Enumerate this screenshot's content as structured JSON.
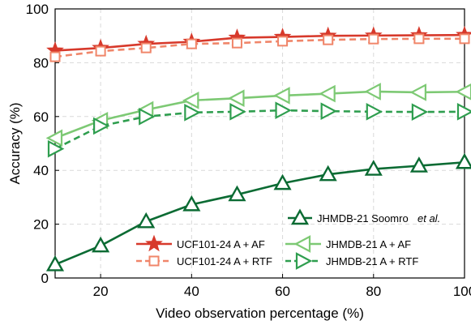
{
  "chart_data": {
    "type": "line",
    "xlabel": "Video observation percentage (%)",
    "ylabel": "Accuracy (%)",
    "xlim": [
      10,
      100
    ],
    "ylim": [
      0,
      100
    ],
    "xticks": [
      20,
      40,
      60,
      80,
      100
    ],
    "yticks": [
      0,
      20,
      40,
      60,
      80,
      100
    ],
    "grid": true,
    "legend_placement": "bottom-right",
    "x": [
      10,
      20,
      30,
      40,
      50,
      60,
      70,
      80,
      90,
      100
    ],
    "series": [
      {
        "name": "UCF101-24 A + AF",
        "values": [
          84.5,
          85.5,
          87.0,
          87.8,
          89.3,
          89.6,
          90.0,
          90.1,
          90.2,
          90.3
        ],
        "color": "#d7392b",
        "marker": "star",
        "dash": "solid"
      },
      {
        "name": "UCF101-24 A + RTF",
        "values": [
          82.2,
          84.3,
          85.5,
          87.0,
          87.3,
          88.0,
          88.5,
          88.8,
          88.9,
          88.9
        ],
        "color": "#f0866a",
        "marker": "square",
        "dash": "dashed"
      },
      {
        "name": "JHMDB-21 A + AF",
        "values": [
          52.0,
          58.5,
          62.5,
          66.0,
          66.8,
          67.8,
          68.5,
          69.3,
          69.0,
          69.2
        ],
        "color": "#7dc974",
        "marker": "triangle-left",
        "dash": "solid"
      },
      {
        "name": "JHMDB-21 A + RTF",
        "values": [
          48.0,
          56.5,
          60.0,
          61.5,
          61.8,
          62.3,
          62.0,
          61.8,
          61.7,
          61.8
        ],
        "color": "#2f9e4f",
        "marker": "triangle-right",
        "dash": "dashed"
      },
      {
        "name": "JHMDB-21 Soomro et al.",
        "values": [
          5.0,
          12.0,
          21.0,
          27.3,
          31.0,
          35.2,
          38.5,
          40.5,
          41.7,
          43.0
        ],
        "color": "#0b6b33",
        "marker": "triangle-up",
        "dash": "solid"
      }
    ],
    "legend": {
      "soomro_prefix": "JHMDB-21 Soomro",
      "soomro_suffix": "et al."
    }
  }
}
